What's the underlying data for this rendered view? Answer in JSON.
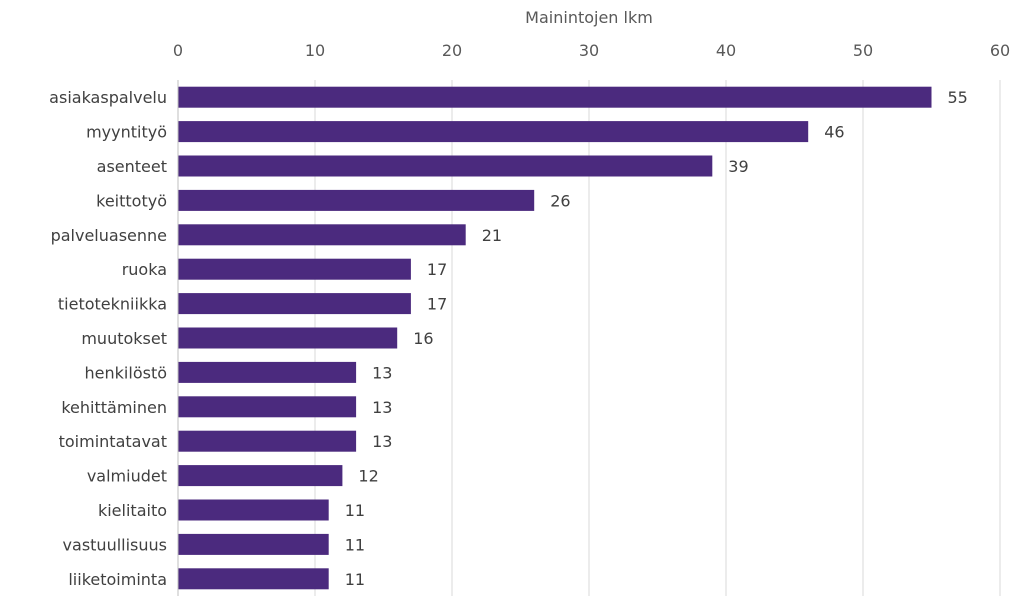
{
  "chart_data": {
    "type": "bar",
    "orientation": "horizontal",
    "xlabel": "Mainintojen lkm",
    "xlim": [
      0,
      60
    ],
    "xticks": [
      0,
      10,
      20,
      30,
      40,
      50,
      60
    ],
    "axis_position": "top",
    "grid": true,
    "legend": "none",
    "bar_color": "#4b2a7e",
    "categories": [
      "asiakaspalvelu",
      "myyntityö",
      "asenteet",
      "keittotyö",
      "palveluasenne",
      "ruoka",
      "tietotekniikka",
      "muutokset",
      "henkilöstö",
      "kehittäminen",
      "toimintatavat",
      "valmiudet",
      "kielitaito",
      "vastuullisuus",
      "liiketoiminta"
    ],
    "values": [
      55,
      46,
      39,
      26,
      21,
      17,
      17,
      16,
      13,
      13,
      13,
      12,
      11,
      11,
      11
    ]
  }
}
